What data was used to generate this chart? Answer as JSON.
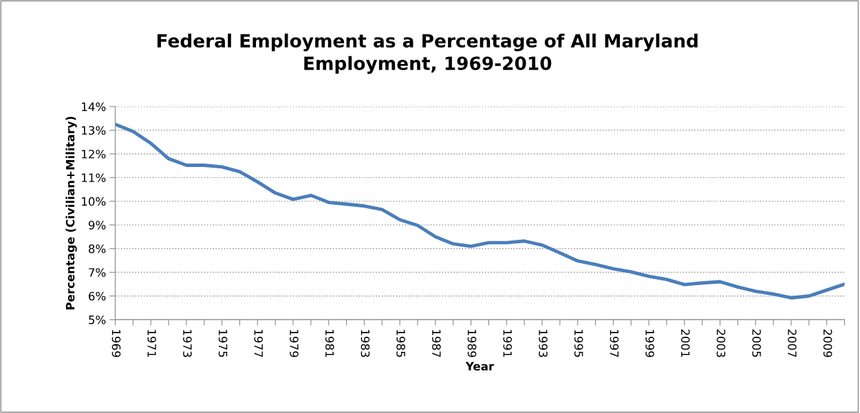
{
  "chart_data": {
    "type": "line",
    "title": "Federal Employment as a Percentage of All Maryland\nEmployment, 1969-2010",
    "xlabel": "Year",
    "ylabel": "Percentage (Civilian+Military)",
    "categories": [
      "1969",
      null,
      "1971",
      null,
      "1973",
      null,
      "1975",
      null,
      "1977",
      null,
      "1979",
      null,
      "1981",
      null,
      "1983",
      null,
      "1985",
      null,
      "1987",
      null,
      "1989",
      null,
      "1991",
      null,
      "1993",
      null,
      "1995",
      null,
      "1997",
      null,
      "1999",
      null,
      "2001",
      null,
      "2003",
      null,
      "2005",
      null,
      "2007",
      null,
      "2009",
      null
    ],
    "series": [
      {
        "color": "#4a7ebb",
        "values": [
          13.25,
          12.95,
          12.45,
          11.8,
          11.52,
          11.52,
          11.45,
          11.25,
          10.82,
          10.35,
          10.08,
          10.25,
          9.95,
          9.88,
          9.8,
          9.65,
          9.22,
          8.98,
          8.5,
          8.2,
          8.1,
          8.25,
          8.25,
          8.32,
          8.15,
          7.82,
          7.48,
          7.33,
          7.15,
          7.02,
          6.83,
          6.7,
          6.48,
          6.55,
          6.6,
          6.38,
          6.2,
          6.08,
          5.92,
          6.0,
          6.25,
          6.5
        ]
      }
    ],
    "ylim": [
      5,
      14
    ],
    "yticks": [
      {
        "value": 5,
        "label": "5%"
      },
      {
        "value": 6,
        "label": "6%"
      },
      {
        "value": 7,
        "label": "7%"
      },
      {
        "value": 8,
        "label": "8%"
      },
      {
        "value": 9,
        "label": "9%"
      },
      {
        "value": 10,
        "label": "10%"
      },
      {
        "value": 11,
        "label": "11%"
      },
      {
        "value": 12,
        "label": "12%"
      },
      {
        "value": 13,
        "label": "13%"
      },
      {
        "value": 14,
        "label": "14%"
      }
    ],
    "grid": "y",
    "marker": "none",
    "line_style": "solid"
  }
}
